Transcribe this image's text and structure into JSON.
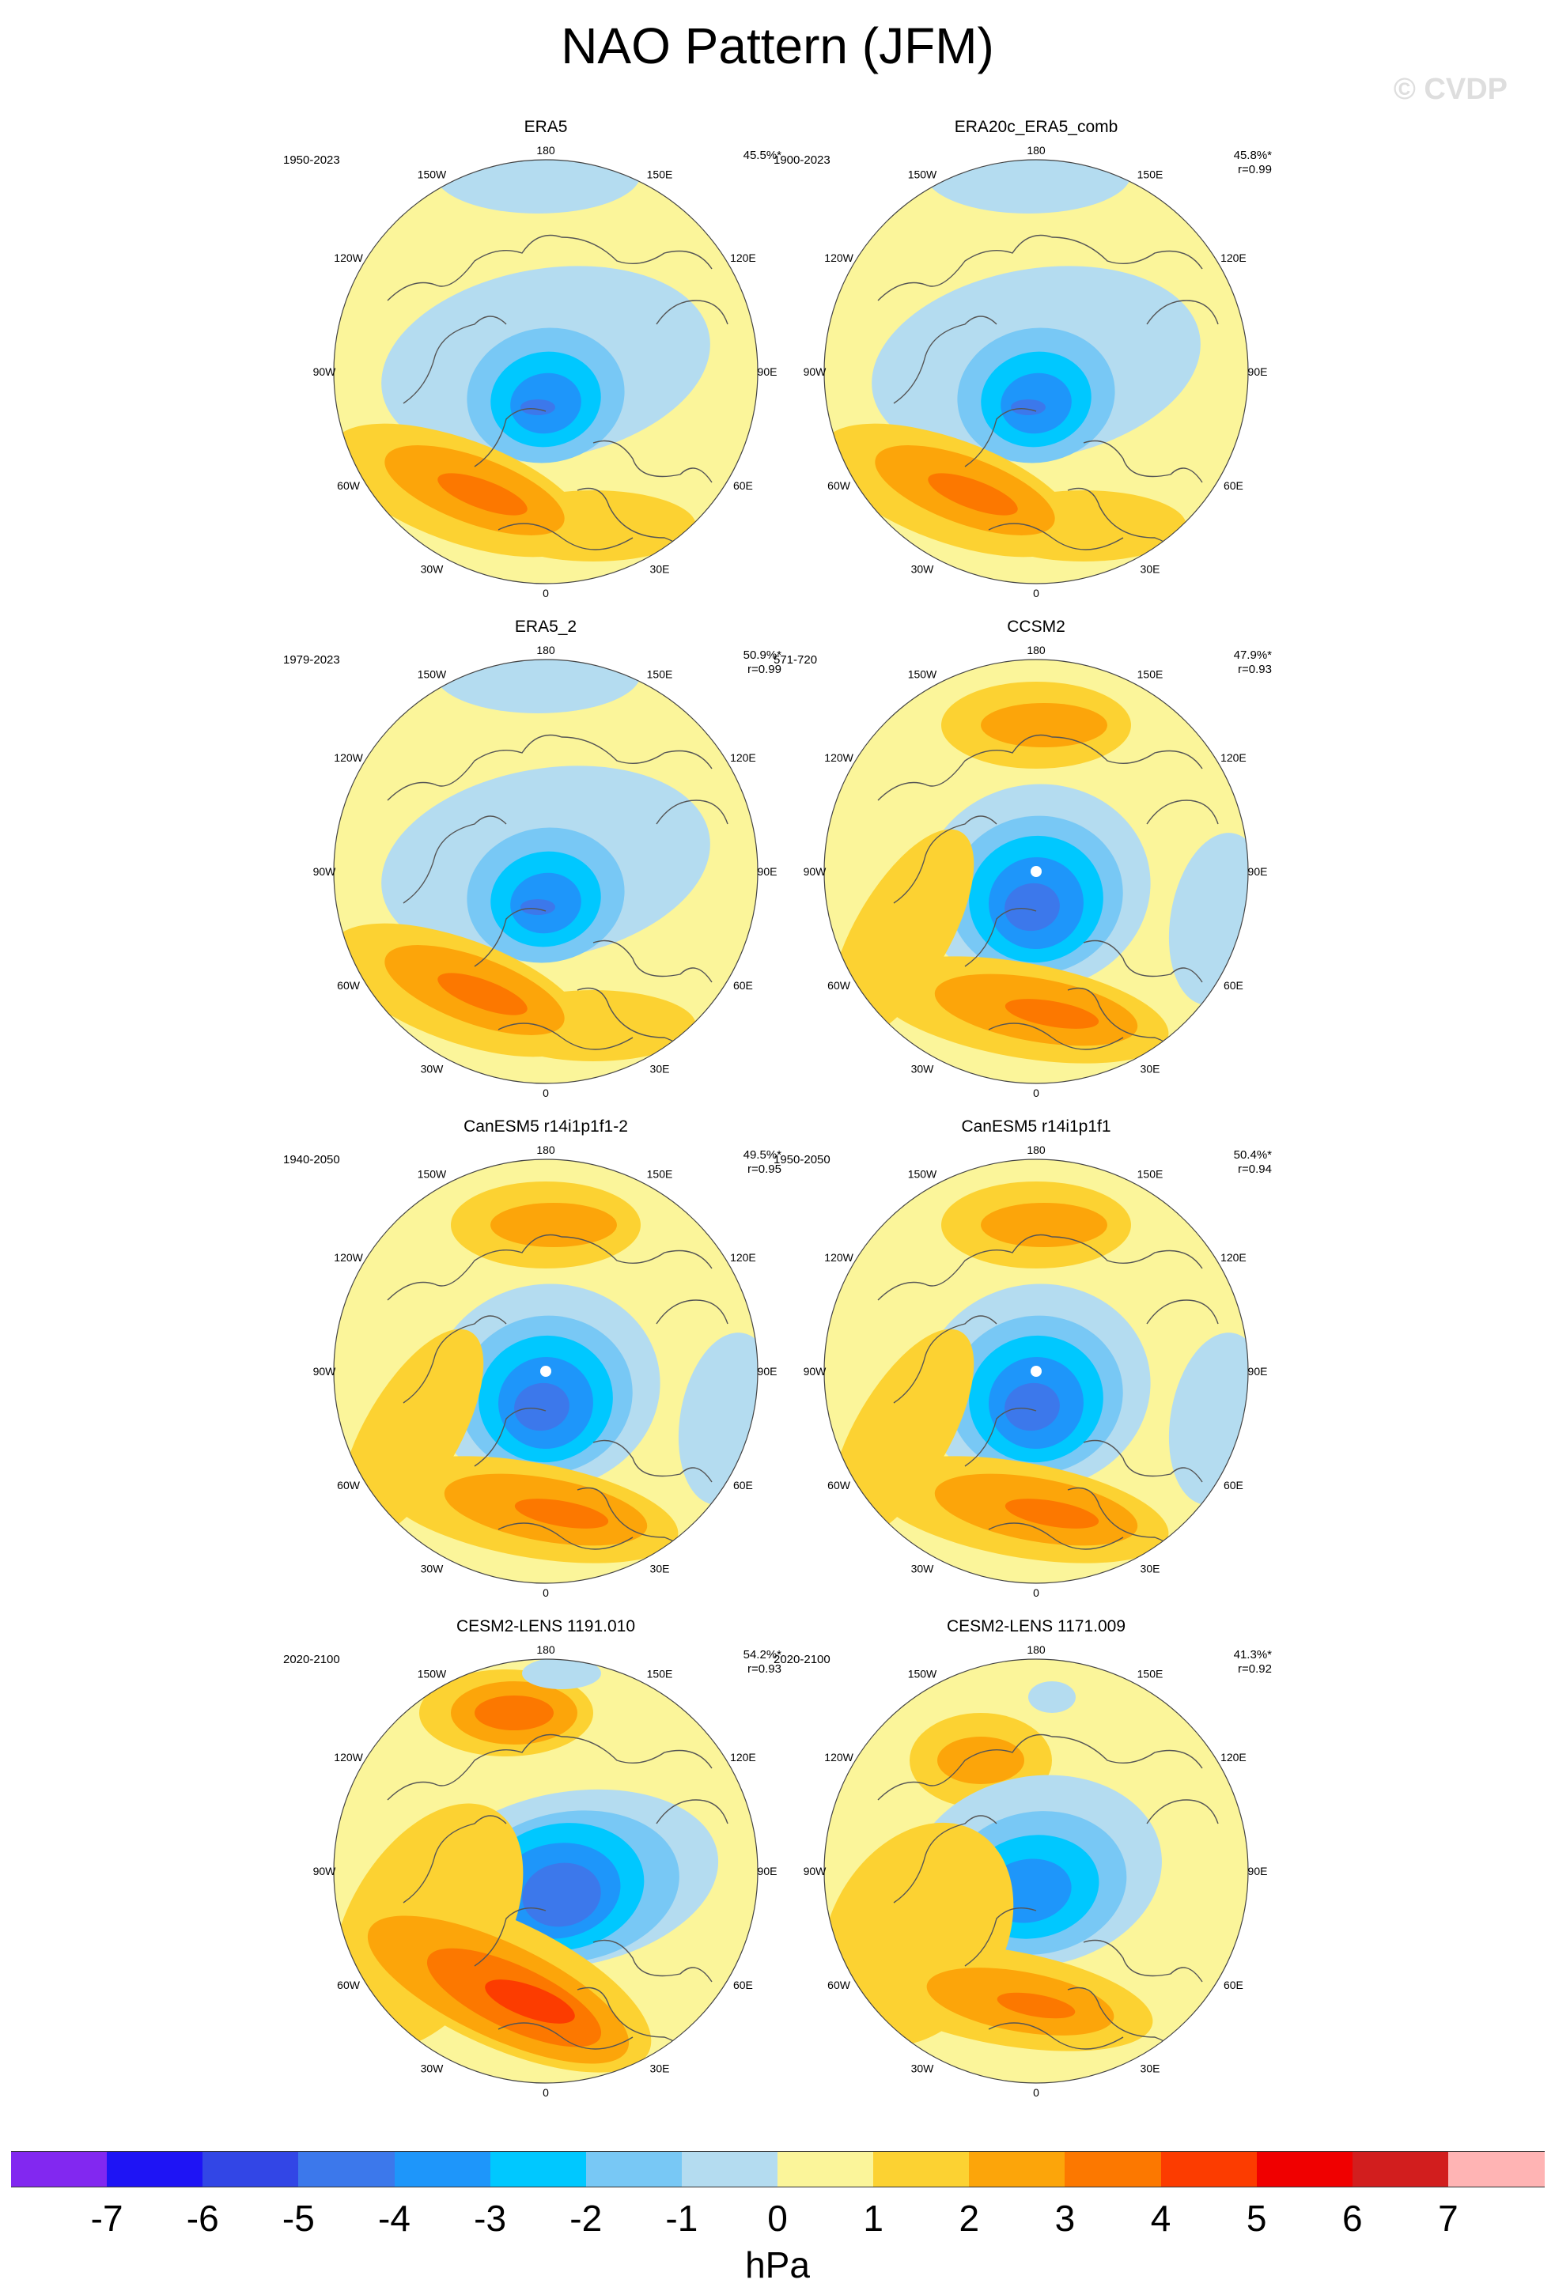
{
  "title": "NAO Pattern (JFM)",
  "watermark": "© CVDP",
  "colors": {
    "ocean_bg": "#fbf59a",
    "land_line": "#555555"
  },
  "lon_labels": [
    "180",
    "150E",
    "120E",
    "90E",
    "60E",
    "30E",
    "0",
    "30W",
    "60W",
    "90W",
    "120W",
    "150W"
  ],
  "panels": [
    {
      "title": "ERA5",
      "period": "1950-2023",
      "pct": "45.5%*",
      "r": "",
      "pattern": "obs",
      "dot": false
    },
    {
      "title": "ERA20c_ERA5_comb",
      "period": "1900-2023",
      "pct": "45.8%*",
      "r": "r=0.99",
      "pattern": "obs",
      "dot": false
    },
    {
      "title": "ERA5_2",
      "period": "1979-2023",
      "pct": "50.9%*",
      "r": "r=0.99",
      "pattern": "obs",
      "dot": false
    },
    {
      "title": "CCSM2",
      "period": "571-720",
      "pct": "47.9%*",
      "r": "r=0.93",
      "pattern": "model",
      "dot": true
    },
    {
      "title": "CanESM5 r14i1p1f1-2",
      "period": "1940-2050",
      "pct": "49.5%*",
      "r": "r=0.95",
      "pattern": "model",
      "dot": true
    },
    {
      "title": "CanESM5 r14i1p1f1",
      "period": "1950-2050",
      "pct": "50.4%*",
      "r": "r=0.94",
      "pattern": "model",
      "dot": true
    },
    {
      "title": "CESM2-LENS 1191.010",
      "period": "2020-2100",
      "pct": "54.2%*",
      "r": "r=0.93",
      "pattern": "strong",
      "dot": false
    },
    {
      "title": "CESM2-LENS 1171.009",
      "period": "2020-2100",
      "pct": "41.3%*",
      "r": "r=0.92",
      "pattern": "lens2",
      "dot": false
    }
  ],
  "colorbar": {
    "colors": [
      "#8228f0",
      "#1e14f5",
      "#3246e6",
      "#3c78eb",
      "#1e96fa",
      "#00c8ff",
      "#78c8f5",
      "#b4dcf0",
      "#fbf59a",
      "#fcd232",
      "#fca50a",
      "#fc7800",
      "#fc3c00",
      "#f00000",
      "#d21e1e",
      "#ffb4b4"
    ],
    "ticks": [
      "-7",
      "-6",
      "-5",
      "-4",
      "-3",
      "-2",
      "-1",
      "0",
      "1",
      "2",
      "3",
      "4",
      "5",
      "6",
      "7"
    ],
    "unit": "hPa"
  }
}
